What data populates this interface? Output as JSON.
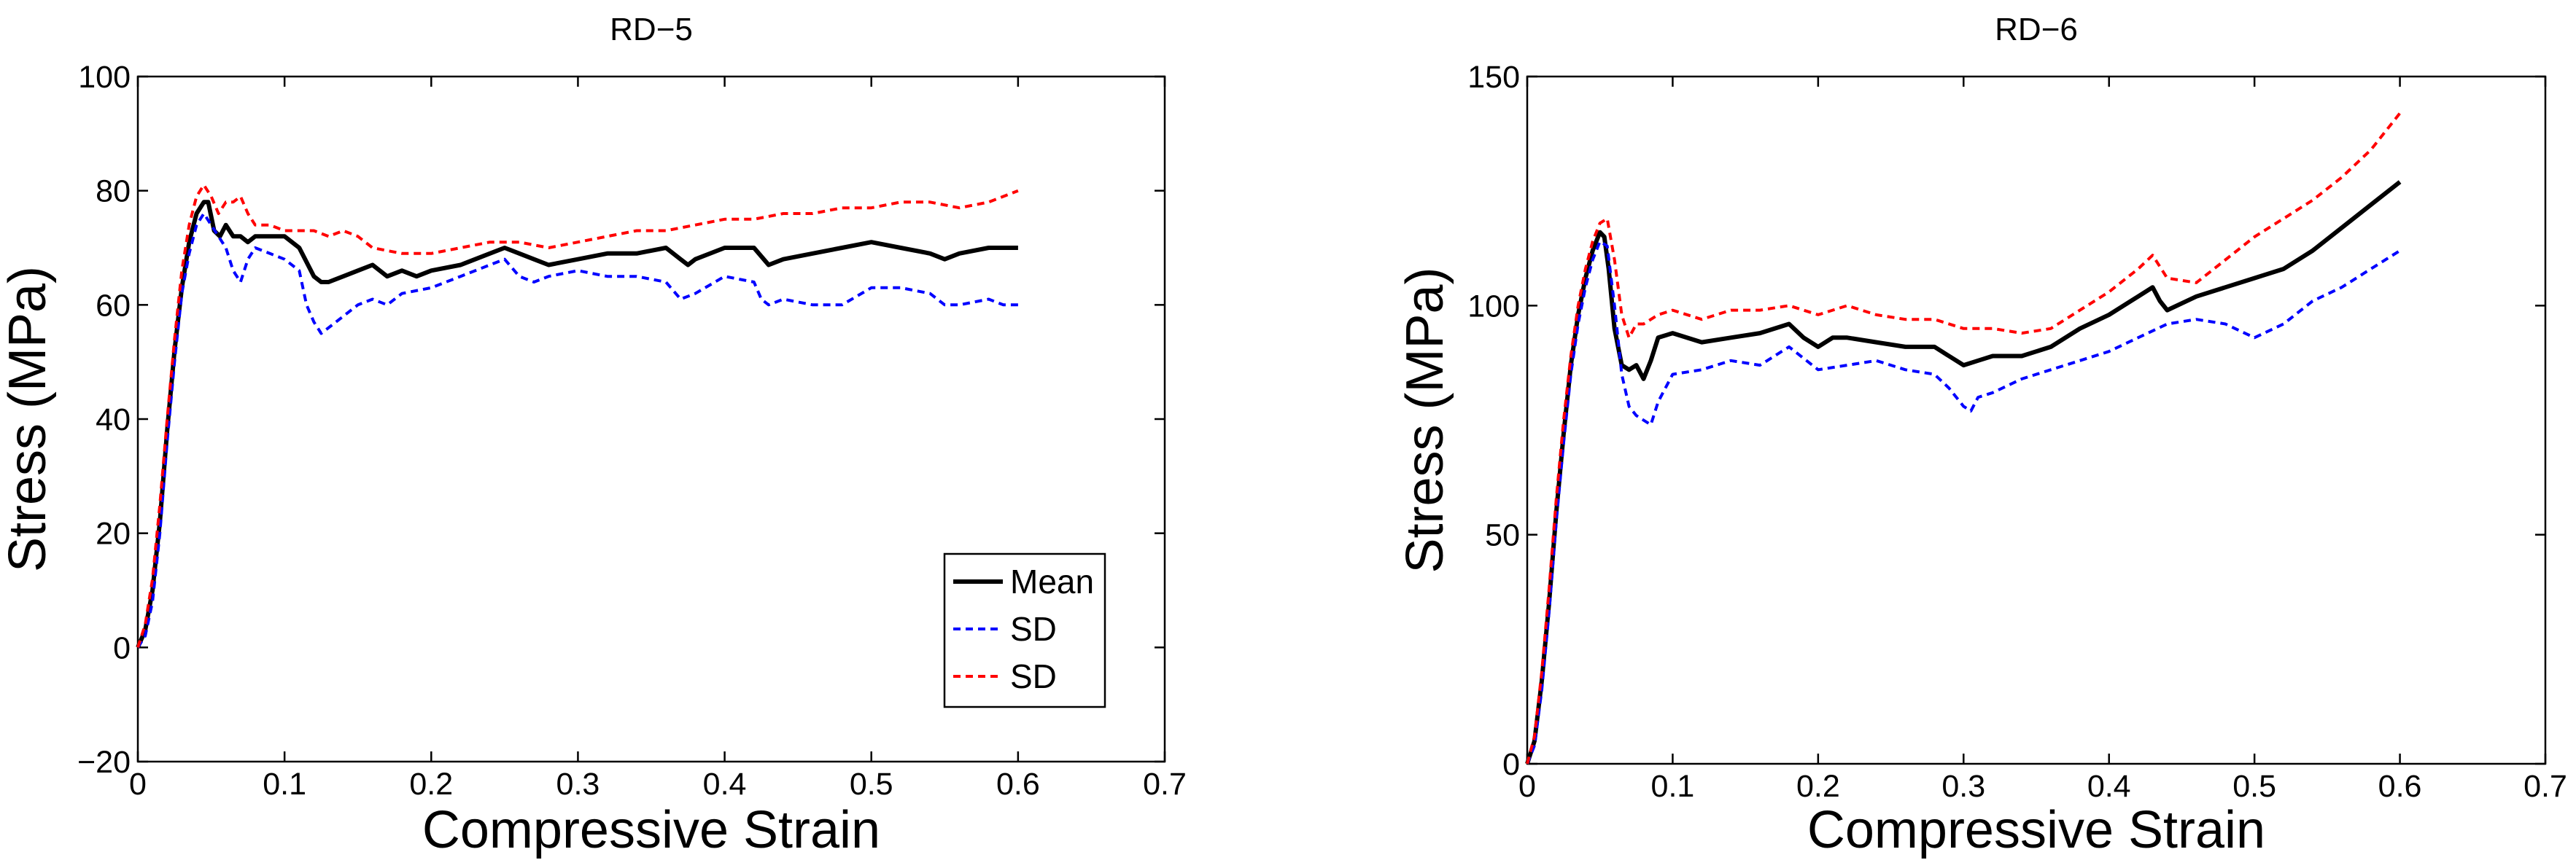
{
  "chart_data": [
    {
      "type": "line",
      "title": "RD−5",
      "xlabel": "Compressive Strain",
      "ylabel": "Stress (MPa)",
      "xlim": [
        0,
        0.7
      ],
      "ylim": [
        -20,
        100
      ],
      "xticks": [
        0,
        0.1,
        0.2,
        0.3,
        0.4,
        0.5,
        0.6,
        0.7
      ],
      "xtick_labels": [
        "0",
        "0.1",
        "0.2",
        "0.3",
        "0.4",
        "0.5",
        "0.6",
        "0.7"
      ],
      "yticks": [
        -20,
        0,
        20,
        40,
        60,
        80,
        100
      ],
      "ytick_labels": [
        "−20",
        "0",
        "20",
        "40",
        "60",
        "80",
        "100"
      ],
      "grid": false,
      "legend": {
        "location": "lower-right",
        "entries": [
          "Mean",
          "SD",
          "SD"
        ]
      },
      "series": [
        {
          "name": "Mean",
          "color": "#000000",
          "style": "solid",
          "x": [
            0,
            0.005,
            0.01,
            0.015,
            0.02,
            0.025,
            0.03,
            0.035,
            0.04,
            0.045,
            0.048,
            0.052,
            0.056,
            0.06,
            0.065,
            0.07,
            0.075,
            0.08,
            0.09,
            0.1,
            0.11,
            0.12,
            0.125,
            0.13,
            0.14,
            0.15,
            0.16,
            0.17,
            0.18,
            0.19,
            0.2,
            0.22,
            0.24,
            0.25,
            0.26,
            0.27,
            0.28,
            0.3,
            0.32,
            0.34,
            0.36,
            0.37,
            0.375,
            0.38,
            0.4,
            0.42,
            0.43,
            0.44,
            0.46,
            0.48,
            0.5,
            0.52,
            0.54,
            0.55,
            0.56,
            0.58,
            0.6
          ],
          "y": [
            0,
            3,
            10,
            22,
            38,
            52,
            63,
            71,
            76,
            78,
            78,
            73,
            72,
            74,
            72,
            72,
            71,
            72,
            72,
            72,
            70,
            65,
            64,
            64,
            65,
            66,
            67,
            65,
            66,
            65,
            66,
            67,
            69,
            70,
            69,
            68,
            67,
            68,
            69,
            69,
            70,
            68,
            67,
            68,
            70,
            70,
            67,
            68,
            69,
            70,
            71,
            70,
            69,
            68,
            69,
            70,
            70
          ]
        },
        {
          "name": "SD",
          "color": "#0000ff",
          "style": "dashed",
          "x": [
            0,
            0.005,
            0.01,
            0.015,
            0.02,
            0.025,
            0.03,
            0.035,
            0.04,
            0.045,
            0.05,
            0.055,
            0.06,
            0.065,
            0.07,
            0.075,
            0.08,
            0.09,
            0.1,
            0.11,
            0.115,
            0.12,
            0.125,
            0.13,
            0.14,
            0.15,
            0.16,
            0.17,
            0.18,
            0.2,
            0.22,
            0.24,
            0.25,
            0.26,
            0.27,
            0.28,
            0.3,
            0.32,
            0.34,
            0.36,
            0.37,
            0.38,
            0.4,
            0.42,
            0.425,
            0.43,
            0.44,
            0.46,
            0.48,
            0.5,
            0.52,
            0.54,
            0.55,
            0.56,
            0.58,
            0.59,
            0.6
          ],
          "y": [
            0,
            2,
            8,
            20,
            36,
            50,
            62,
            69,
            74,
            76,
            74,
            72,
            70,
            66,
            64,
            68,
            70,
            69,
            68,
            66,
            60,
            57,
            55,
            56,
            58,
            60,
            61,
            60,
            62,
            63,
            65,
            67,
            68,
            65,
            64,
            65,
            66,
            65,
            65,
            64,
            61,
            62,
            65,
            64,
            61,
            60,
            61,
            60,
            60,
            63,
            63,
            62,
            60,
            60,
            61,
            60,
            60
          ]
        },
        {
          "name": "SD",
          "color": "#ff0000",
          "style": "dashed",
          "x": [
            0,
            0.005,
            0.01,
            0.015,
            0.02,
            0.025,
            0.03,
            0.035,
            0.04,
            0.045,
            0.05,
            0.055,
            0.06,
            0.065,
            0.07,
            0.075,
            0.08,
            0.09,
            0.1,
            0.11,
            0.12,
            0.13,
            0.14,
            0.15,
            0.16,
            0.18,
            0.2,
            0.22,
            0.24,
            0.26,
            0.28,
            0.3,
            0.32,
            0.34,
            0.36,
            0.38,
            0.4,
            0.42,
            0.44,
            0.46,
            0.48,
            0.5,
            0.52,
            0.54,
            0.56,
            0.58,
            0.6
          ],
          "y": [
            0,
            4,
            12,
            25,
            40,
            54,
            66,
            74,
            79,
            81,
            79,
            76,
            78,
            78,
            79,
            76,
            74,
            74,
            73,
            73,
            73,
            72,
            73,
            72,
            70,
            69,
            69,
            70,
            71,
            71,
            70,
            71,
            72,
            73,
            73,
            74,
            75,
            75,
            76,
            76,
            77,
            77,
            78,
            78,
            77,
            78,
            80
          ]
        }
      ]
    },
    {
      "type": "line",
      "title": "RD−6",
      "xlabel": "Compressive Strain",
      "ylabel": "Stress (MPa)",
      "xlim": [
        0,
        0.7
      ],
      "ylim": [
        0,
        150
      ],
      "xticks": [
        0,
        0.1,
        0.2,
        0.3,
        0.4,
        0.5,
        0.6,
        0.7
      ],
      "xtick_labels": [
        "0",
        "0.1",
        "0.2",
        "0.3",
        "0.4",
        "0.5",
        "0.6",
        "0.7"
      ],
      "yticks": [
        0,
        50,
        100,
        150
      ],
      "ytick_labels": [
        "0",
        "50",
        "100",
        "150"
      ],
      "grid": false,
      "series": [
        {
          "name": "Mean",
          "color": "#000000",
          "style": "solid",
          "x": [
            0,
            0.005,
            0.01,
            0.015,
            0.02,
            0.025,
            0.03,
            0.035,
            0.04,
            0.045,
            0.05,
            0.053,
            0.056,
            0.06,
            0.065,
            0.07,
            0.075,
            0.08,
            0.085,
            0.09,
            0.1,
            0.12,
            0.14,
            0.16,
            0.18,
            0.19,
            0.2,
            0.21,
            0.22,
            0.24,
            0.26,
            0.28,
            0.29,
            0.3,
            0.31,
            0.32,
            0.34,
            0.36,
            0.38,
            0.4,
            0.42,
            0.43,
            0.435,
            0.44,
            0.46,
            0.48,
            0.5,
            0.52,
            0.54,
            0.56,
            0.58,
            0.6
          ],
          "y": [
            0,
            5,
            18,
            35,
            55,
            72,
            87,
            98,
            106,
            112,
            116,
            115,
            108,
            95,
            87,
            86,
            87,
            84,
            88,
            93,
            94,
            92,
            93,
            94,
            96,
            93,
            91,
            93,
            93,
            92,
            91,
            91,
            89,
            87,
            88,
            89,
            89,
            91,
            95,
            98,
            102,
            104,
            101,
            99,
            102,
            104,
            106,
            108,
            112,
            117,
            122,
            127
          ]
        },
        {
          "name": "SD",
          "color": "#0000ff",
          "style": "dashed",
          "x": [
            0,
            0.005,
            0.01,
            0.015,
            0.02,
            0.025,
            0.03,
            0.035,
            0.04,
            0.045,
            0.05,
            0.055,
            0.06,
            0.065,
            0.07,
            0.075,
            0.08,
            0.085,
            0.09,
            0.1,
            0.12,
            0.14,
            0.16,
            0.18,
            0.2,
            0.22,
            0.24,
            0.26,
            0.28,
            0.29,
            0.3,
            0.305,
            0.31,
            0.32,
            0.34,
            0.36,
            0.38,
            0.4,
            0.42,
            0.44,
            0.46,
            0.48,
            0.5,
            0.52,
            0.54,
            0.56,
            0.58,
            0.6
          ],
          "y": [
            0,
            4,
            16,
            33,
            53,
            70,
            85,
            96,
            104,
            110,
            114,
            113,
            100,
            85,
            78,
            76,
            75,
            74,
            79,
            85,
            86,
            88,
            87,
            91,
            86,
            87,
            88,
            86,
            85,
            82,
            78,
            77,
            80,
            81,
            84,
            86,
            88,
            90,
            93,
            96,
            97,
            96,
            93,
            96,
            101,
            104,
            108,
            112
          ]
        },
        {
          "name": "SD",
          "color": "#ff0000",
          "style": "dashed",
          "x": [
            0,
            0.005,
            0.01,
            0.015,
            0.02,
            0.025,
            0.03,
            0.035,
            0.04,
            0.045,
            0.05,
            0.055,
            0.06,
            0.065,
            0.07,
            0.075,
            0.08,
            0.09,
            0.1,
            0.12,
            0.14,
            0.16,
            0.18,
            0.2,
            0.22,
            0.24,
            0.26,
            0.28,
            0.3,
            0.32,
            0.34,
            0.36,
            0.38,
            0.4,
            0.42,
            0.43,
            0.44,
            0.46,
            0.48,
            0.5,
            0.52,
            0.54,
            0.56,
            0.58,
            0.6
          ],
          "y": [
            0,
            6,
            20,
            38,
            58,
            75,
            89,
            100,
            108,
            114,
            118,
            119,
            110,
            98,
            93,
            96,
            96,
            98,
            99,
            97,
            99,
            99,
            100,
            98,
            100,
            98,
            97,
            97,
            95,
            95,
            94,
            95,
            99,
            103,
            108,
            111,
            106,
            105,
            110,
            115,
            119,
            123,
            128,
            134,
            142
          ]
        }
      ]
    }
  ]
}
